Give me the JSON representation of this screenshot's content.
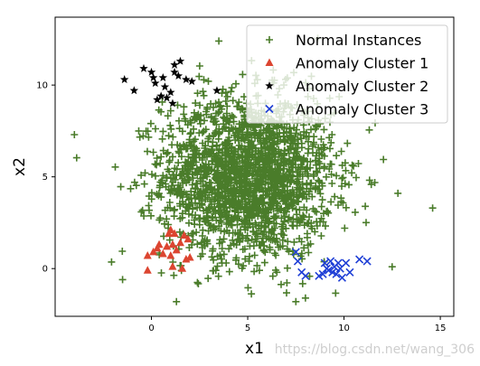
{
  "colors": {
    "normal": "#4a7c2a",
    "cluster1": "#dc4530",
    "cluster2": "#000000",
    "cluster3": "#1f3fd6"
  },
  "watermark": "https://blog.csdn.net/wang_306",
  "chart_data": {
    "type": "scatter",
    "title": "",
    "xlabel": "x1",
    "ylabel": "x2",
    "xlim": [
      -5,
      15.7
    ],
    "ylim": [
      -2.6,
      13.7
    ],
    "xticks": [
      0,
      5,
      10,
      15
    ],
    "yticks": [
      0,
      5,
      10
    ],
    "grid": false,
    "legend_position": "top-right",
    "legend": [
      {
        "label": "Normal Instances",
        "marker": "plus",
        "series": "normal"
      },
      {
        "label": "Anomaly Cluster 1",
        "marker": "triangle",
        "series": "cluster1"
      },
      {
        "label": "Anomaly Cluster 2",
        "marker": "star",
        "series": "cluster2"
      },
      {
        "label": "Anomaly Cluster 3",
        "marker": "x",
        "series": "cluster3"
      }
    ],
    "normal_summary": {
      "approx_count": 2000,
      "center": [
        5,
        5
      ],
      "std": [
        2.2,
        2.2
      ],
      "representative_outliers": [
        [
          -4,
          7.3
        ],
        [
          14.6,
          3.3
        ],
        [
          -1.5,
          -0.6
        ],
        [
          1.3,
          -1.8
        ],
        [
          12.5,
          0.1
        ],
        [
          3.5,
          12.4
        ],
        [
          12.8,
          4.1
        ],
        [
          7.5,
          -1.8
        ]
      ]
    },
    "series": [
      {
        "name": "Anomaly Cluster 1",
        "points": [
          [
            -0.2,
            0.7
          ],
          [
            0.1,
            0.9
          ],
          [
            0.3,
            1.1
          ],
          [
            0.6,
            0.8
          ],
          [
            0.9,
            1.9
          ],
          [
            1.0,
            2.1
          ],
          [
            1.1,
            1.3
          ],
          [
            1.0,
            0.7
          ],
          [
            1.3,
            1.0
          ],
          [
            1.5,
            1.4
          ],
          [
            1.7,
            1.8
          ],
          [
            1.9,
            1.6
          ],
          [
            2.0,
            0.6
          ],
          [
            1.8,
            0.5
          ],
          [
            1.2,
            1.9
          ],
          [
            1.6,
            0.0
          ],
          [
            1.1,
            0.1
          ],
          [
            0.4,
            1.3
          ],
          [
            -0.2,
            -0.1
          ],
          [
            0.8,
            1.2
          ]
        ]
      },
      {
        "name": "Anomaly Cluster 2",
        "points": [
          [
            -1.4,
            10.3
          ],
          [
            -0.9,
            9.7
          ],
          [
            -0.4,
            10.9
          ],
          [
            0.0,
            10.7
          ],
          [
            0.2,
            10.1
          ],
          [
            0.6,
            10.4
          ],
          [
            0.7,
            9.9
          ],
          [
            0.3,
            9.2
          ],
          [
            0.8,
            9.3
          ],
          [
            1.1,
            9.0
          ],
          [
            1.2,
            10.7
          ],
          [
            1.4,
            10.5
          ],
          [
            1.5,
            11.3
          ],
          [
            1.2,
            11.1
          ],
          [
            1.8,
            10.3
          ],
          [
            2.1,
            10.2
          ],
          [
            1.0,
            9.6
          ],
          [
            0.5,
            9.4
          ],
          [
            3.4,
            9.7
          ],
          [
            0.1,
            10.4
          ]
        ]
      },
      {
        "name": "Anomaly Cluster 3",
        "points": [
          [
            7.5,
            0.9
          ],
          [
            7.6,
            0.4
          ],
          [
            7.8,
            -0.2
          ],
          [
            8.0,
            -0.4
          ],
          [
            8.9,
            -0.3
          ],
          [
            9.0,
            0.3
          ],
          [
            9.2,
            -0.1
          ],
          [
            9.3,
            0.4
          ],
          [
            9.4,
            -0.2
          ],
          [
            9.6,
            -0.3
          ],
          [
            9.7,
            0.3
          ],
          [
            9.9,
            -0.5
          ],
          [
            10.1,
            0.3
          ],
          [
            10.3,
            -0.2
          ],
          [
            10.8,
            0.5
          ],
          [
            11.2,
            0.4
          ],
          [
            9.1,
            0.0
          ],
          [
            9.5,
            0.1
          ],
          [
            8.7,
            -0.4
          ],
          [
            9.8,
            0.0
          ]
        ]
      }
    ]
  }
}
